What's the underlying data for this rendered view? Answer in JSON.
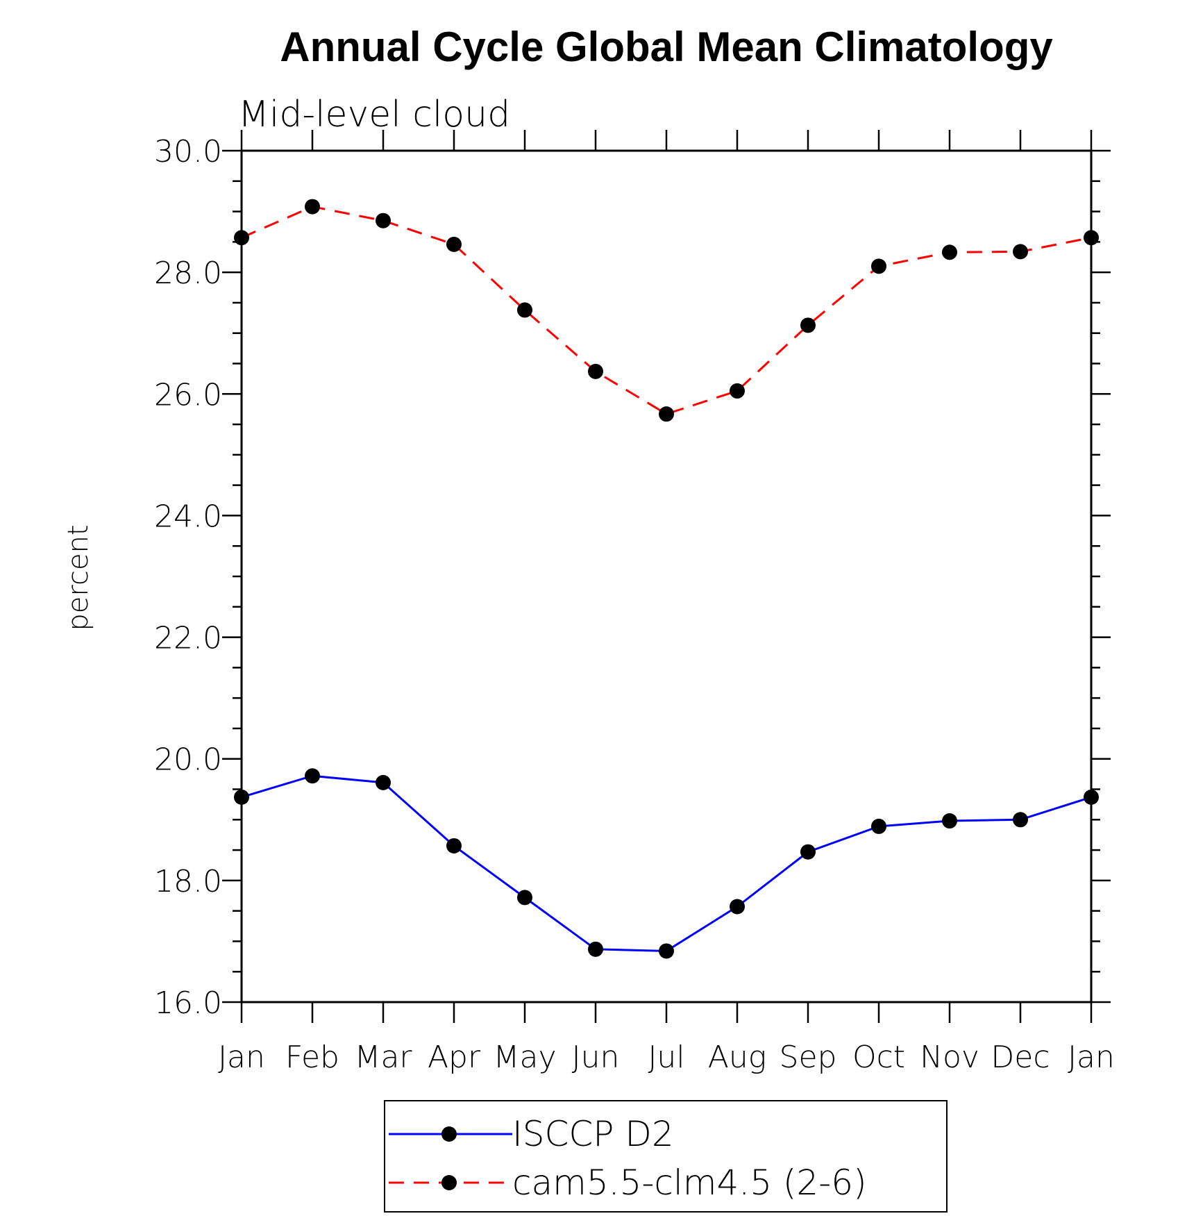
{
  "chart_data": {
    "type": "line",
    "title": "Annual Cycle Global Mean Climatology",
    "subtitle": "Mid-level cloud",
    "xlabel": "",
    "ylabel": "percent",
    "categories": [
      "Jan",
      "Feb",
      "Mar",
      "Apr",
      "May",
      "Jun",
      "Jul",
      "Aug",
      "Sep",
      "Oct",
      "Nov",
      "Dec",
      "Jan"
    ],
    "ylim": [
      16.0,
      30.0
    ],
    "yticks": [
      "16.0",
      "18.0",
      "20.0",
      "22.0",
      "24.0",
      "26.0",
      "28.0",
      "30.0"
    ],
    "grid": false,
    "legend_position": "bottom",
    "series": [
      {
        "name": "ISCCP D2",
        "color": "#0000ff",
        "line_style": "solid",
        "marker": "filled-circle",
        "values": [
          19.37,
          19.72,
          19.61,
          18.57,
          17.72,
          16.87,
          16.84,
          17.57,
          18.47,
          18.89,
          18.98,
          19.0,
          19.37
        ]
      },
      {
        "name": "cam5.5-clm4.5 (2-6)",
        "color": "#ff0000",
        "line_style": "dashed",
        "marker": "filled-circle",
        "values": [
          28.57,
          29.08,
          28.85,
          28.46,
          27.38,
          26.37,
          25.67,
          26.05,
          27.13,
          28.1,
          28.33,
          28.34,
          28.57
        ]
      }
    ]
  }
}
